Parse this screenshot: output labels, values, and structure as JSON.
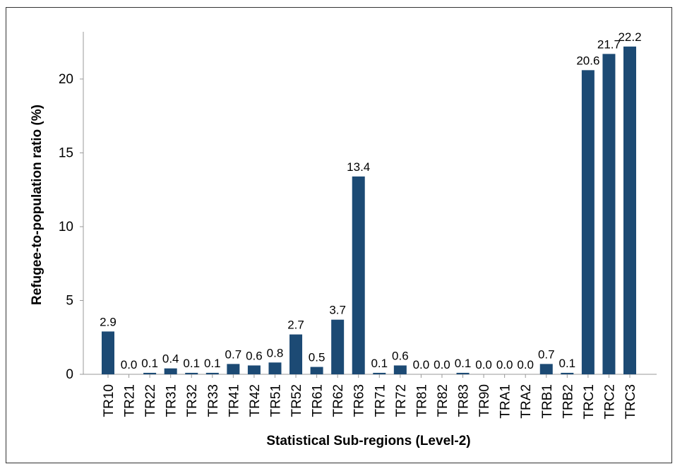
{
  "chart_data": {
    "type": "bar",
    "x_label": "Statistical Sub-regions (Level-2)",
    "y_label": "Refugee-to-population ratio (%)",
    "categories": [
      "TR10",
      "TR21",
      "TR22",
      "TR31",
      "TR32",
      "TR33",
      "TR41",
      "TR42",
      "TR51",
      "TR52",
      "TR61",
      "TR62",
      "TR63",
      "TR71",
      "TR72",
      "TR81",
      "TR82",
      "TR83",
      "TR90",
      "TRA1",
      "TRA2",
      "TRB1",
      "TRB2",
      "TRC1",
      "TRC2",
      "TRC3"
    ],
    "values": [
      2.9,
      0.0,
      0.1,
      0.4,
      0.1,
      0.1,
      0.7,
      0.6,
      0.8,
      2.7,
      0.5,
      3.7,
      13.4,
      0.1,
      0.6,
      0.0,
      0.0,
      0.1,
      0.0,
      0.0,
      0.0,
      0.7,
      0.1,
      20.6,
      21.7,
      22.2
    ],
    "value_labels": [
      "2.9",
      "0.0",
      "0.1",
      "0.4",
      "0.1",
      "0.1",
      "0.7",
      "0.6",
      "0.8",
      "2.7",
      "0.5",
      "3.7",
      "13.4",
      "0.1",
      "0.6",
      "0.0",
      "0.0",
      "0.1",
      "0.0",
      "0.0",
      "0.0",
      "0.7",
      "0.1",
      "20.6",
      "21.7",
      "22.2"
    ],
    "color": "#1c4a74",
    "ylim": [
      0,
      23.2
    ],
    "yticks": [
      0,
      5,
      10,
      15,
      20
    ]
  }
}
